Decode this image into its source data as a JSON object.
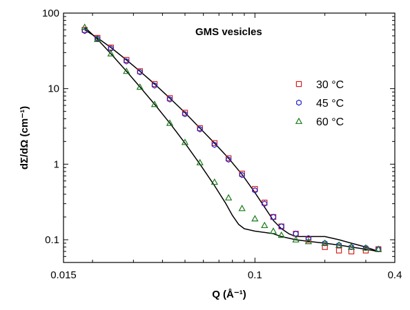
{
  "chart_data": {
    "type": "scatter",
    "title": "GMS vesicles",
    "xlabel": "Q (Å⁻¹)",
    "ylabel": "dΣ/dΩ (cm⁻¹)",
    "x_scale": "log",
    "y_scale": "log",
    "xlim": [
      0.015,
      0.4
    ],
    "ylim": [
      0.05,
      100
    ],
    "x_ticks": [
      {
        "value": 0.015,
        "label": "0.015"
      },
      {
        "value": 0.1,
        "label": "0.1"
      },
      {
        "value": 0.4,
        "label": "0.4"
      }
    ],
    "y_ticks": [
      {
        "value": 0.1,
        "label": "0.1"
      },
      {
        "value": 1,
        "label": "1"
      },
      {
        "value": 10,
        "label": "10"
      },
      {
        "value": 100,
        "label": "100"
      }
    ],
    "grid": false,
    "legend_position": "right",
    "series": [
      {
        "name": "30 °C",
        "marker": "square",
        "color": "#d62020",
        "x": [
          0.0185,
          0.021,
          0.024,
          0.028,
          0.032,
          0.037,
          0.043,
          0.05,
          0.058,
          0.067,
          0.077,
          0.088,
          0.1,
          0.11,
          0.12,
          0.13,
          0.15,
          0.17,
          0.2,
          0.23,
          0.26,
          0.3,
          0.34
        ],
        "y": [
          60,
          47,
          35,
          24,
          17,
          11.5,
          7.5,
          4.8,
          3.0,
          1.9,
          1.2,
          0.75,
          0.47,
          0.31,
          0.2,
          0.15,
          0.12,
          0.1,
          0.08,
          0.072,
          0.07,
          0.072,
          0.075
        ]
      },
      {
        "name": "45 °C",
        "marker": "hexagon",
        "color": "#2020d0",
        "x": [
          0.0185,
          0.021,
          0.024,
          0.028,
          0.032,
          0.037,
          0.043,
          0.05,
          0.058,
          0.067,
          0.077,
          0.088,
          0.1,
          0.11,
          0.12,
          0.13,
          0.15,
          0.17,
          0.2,
          0.23,
          0.26,
          0.3,
          0.34
        ],
        "y": [
          58,
          46,
          34,
          23,
          16.5,
          11,
          7.2,
          4.6,
          2.9,
          1.8,
          1.15,
          0.72,
          0.45,
          0.3,
          0.2,
          0.15,
          0.12,
          0.105,
          0.09,
          0.085,
          0.08,
          0.078,
          0.075
        ]
      },
      {
        "name": "60 °C",
        "marker": "triangle",
        "color": "#1a7a1a",
        "x": [
          0.0185,
          0.021,
          0.024,
          0.028,
          0.032,
          0.037,
          0.043,
          0.05,
          0.058,
          0.067,
          0.077,
          0.088,
          0.1,
          0.11,
          0.12,
          0.13,
          0.15,
          0.17,
          0.2,
          0.23,
          0.26,
          0.3,
          0.34
        ],
        "y": [
          65,
          45,
          29,
          17,
          10.5,
          6.2,
          3.5,
          1.95,
          1.05,
          0.58,
          0.36,
          0.26,
          0.19,
          0.155,
          0.13,
          0.115,
          0.1,
          0.095,
          0.09,
          0.085,
          0.08,
          0.078,
          0.075
        ]
      }
    ],
    "fits": [
      {
        "color": "#000000",
        "x": [
          0.0185,
          0.021,
          0.024,
          0.028,
          0.032,
          0.037,
          0.043,
          0.05,
          0.058,
          0.067,
          0.077,
          0.088,
          0.1,
          0.11,
          0.12,
          0.13,
          0.14,
          0.15,
          0.17,
          0.2,
          0.23,
          0.26,
          0.3,
          0.34
        ],
        "y": [
          60,
          47,
          35,
          24,
          17,
          11.5,
          7.5,
          4.8,
          3.0,
          1.9,
          1.2,
          0.73,
          0.42,
          0.27,
          0.18,
          0.14,
          0.12,
          0.11,
          0.11,
          0.11,
          0.1,
          0.09,
          0.08,
          0.07
        ]
      },
      {
        "color": "#000000",
        "x": [
          0.0185,
          0.021,
          0.024,
          0.028,
          0.032,
          0.037,
          0.043,
          0.05,
          0.058,
          0.067,
          0.075,
          0.08,
          0.085,
          0.09,
          0.1,
          0.11,
          0.12,
          0.13,
          0.15,
          0.17,
          0.2,
          0.23,
          0.26,
          0.3,
          0.34
        ],
        "y": [
          65,
          45,
          29,
          17,
          10.5,
          6.2,
          3.5,
          1.9,
          1.0,
          0.52,
          0.3,
          0.21,
          0.16,
          0.14,
          0.13,
          0.125,
          0.12,
          0.11,
          0.1,
          0.095,
          0.09,
          0.085,
          0.08,
          0.075,
          0.07
        ]
      }
    ]
  }
}
